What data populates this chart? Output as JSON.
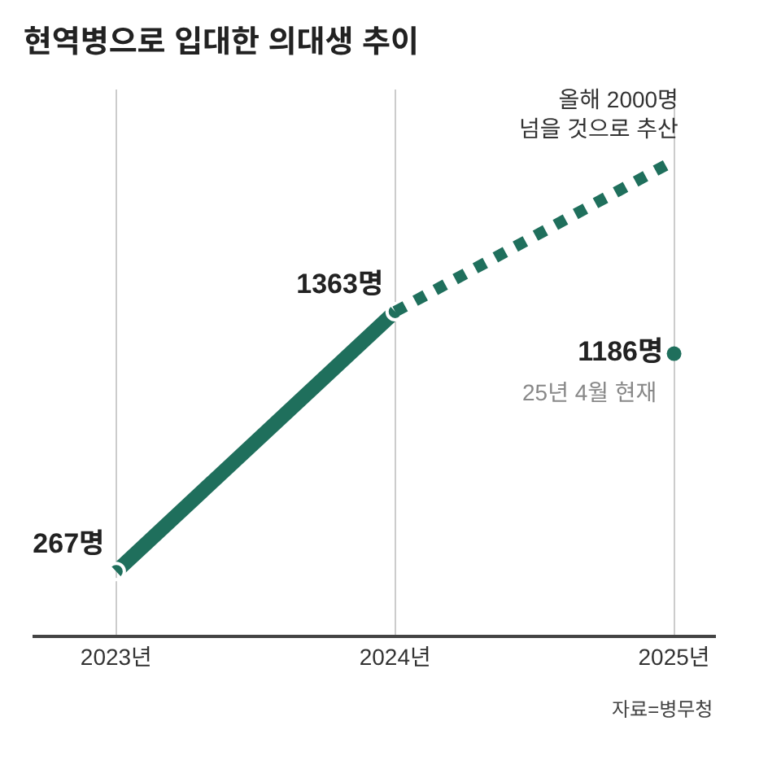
{
  "chart_data": {
    "type": "line",
    "title": "현역병으로 입대한 의대생 추이",
    "categories": [
      "2023년",
      "2024년",
      "2025년"
    ],
    "ylim": [
      0,
      2300
    ],
    "tick_labels": "x",
    "series": [
      {
        "color": "#1f6f5c",
        "values": [
          267,
          1363,
          null
        ],
        "marker": "circle",
        "line_style": "solid",
        "value_labels": [
          "267명",
          "1363명",
          null
        ]
      },
      {
        "color": "#1f6f5c",
        "values": [
          null,
          1363,
          2000
        ],
        "marker": "none",
        "line_style": "dashed"
      },
      {
        "type": "scatter",
        "color": "#1f6f5c",
        "values": [
          null,
          null,
          1186
        ],
        "marker": "circle",
        "value_labels": [
          null,
          null,
          "1186명"
        ]
      }
    ],
    "annotations": [
      {
        "text": "올해 2000명\n넘을 것으로 추산",
        "x": "2025년",
        "y": 2000
      },
      {
        "text": "25년 4월 현재",
        "x": "2025년",
        "y": 1186
      },
      "자료=병무청"
    ],
    "grid": "x"
  }
}
